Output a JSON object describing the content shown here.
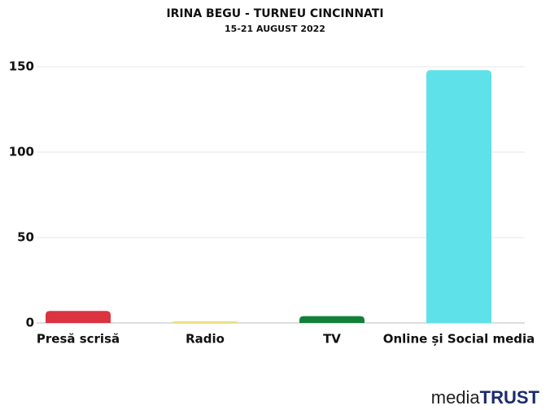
{
  "chart_data": {
    "type": "bar",
    "title": "IRINA BEGU - TURNEU CINCINNATI",
    "subtitle": "15-21 AUGUST 2022",
    "categories": [
      "Presă scrisă",
      "Radio",
      "TV",
      "Online și Social media"
    ],
    "values": [
      7,
      1,
      4,
      148
    ],
    "colors": [
      "#dc3341",
      "#ece27a",
      "#13803a",
      "#5ee1e8"
    ],
    "ylim": [
      0,
      150
    ],
    "yticks": [
      0,
      50,
      100,
      150
    ],
    "grid": true
  },
  "logo": {
    "part1": "media",
    "part2": "TRUST"
  }
}
